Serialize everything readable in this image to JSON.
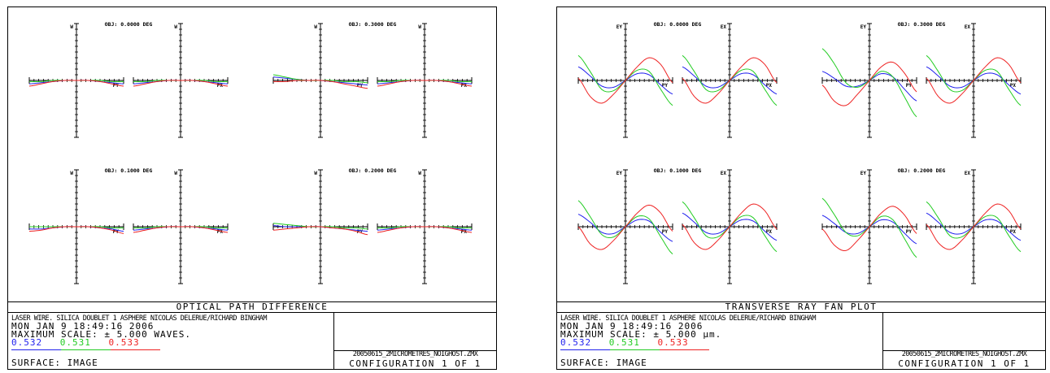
{
  "colors": {
    "wave1": "#2222ee",
    "wave2": "#22cc22",
    "wave3": "#ee2222"
  },
  "panels": [
    {
      "id": "opd",
      "title": "OPTICAL PATH DIFFERENCE",
      "description": "LASER WIRE. SILICA DOUBLET 1 ASPHERE NICOLAS DELERUE/RICHARD BINGHAM",
      "date": "MON JAN  9 18:49:16 2006",
      "scale": "MAXIMUM SCALE: ± 5.000 WAVES.",
      "wavelengths": [
        "0.532",
        "0.531",
        "0.533"
      ],
      "surface": "SURFACE: IMAGE",
      "filename": "20050615_2MICROMETRES_NOIGHOST.ZMX",
      "configuration": "CONFIGURATION  1 OF 1"
    },
    {
      "id": "ray",
      "title": "TRANSVERSE RAY FAN PLOT",
      "description": "LASER WIRE. SILICA DOUBLET 1 ASPHERE NICOLAS DELERUE/RICHARD BINGHAM",
      "date": "MON JAN  9 18:49:16 2006",
      "scale": "MAXIMUM SCALE: ± 5.000 µm.",
      "wavelengths": [
        "0.532",
        "0.531",
        "0.533"
      ],
      "surface": "SURFACE: IMAGE",
      "filename": "20050615_2MICROMETRES_NOIGHOST.ZMX",
      "configuration": "CONFIGURATION  1 OF 1"
    }
  ],
  "chart_data": [
    {
      "type": "line",
      "title": "OPTICAL PATH DIFFERENCE",
      "x": [
        -1,
        -0.75,
        -0.5,
        -0.25,
        0,
        0.25,
        0.5,
        0.75,
        1
      ],
      "ylim": [
        -5,
        5
      ],
      "fields": [
        {
          "obj": "OBJ: 0.0000 DEG",
          "left_axis": "W",
          "right_axis": "W",
          "left_label": "PY",
          "right_label": "PX",
          "py": [
            [
              -0.3,
              -0.2,
              -0.1,
              0,
              0,
              0,
              -0.1,
              -0.2,
              -0.3
            ],
            [
              -0.1,
              -0.1,
              0,
              0,
              0,
              0,
              0,
              -0.1,
              -0.1
            ],
            [
              -0.5,
              -0.3,
              -0.1,
              0,
              0,
              0,
              -0.1,
              -0.3,
              -0.5
            ]
          ],
          "px": [
            [
              -0.3,
              -0.2,
              -0.1,
              0,
              0,
              0,
              -0.1,
              -0.2,
              -0.3
            ],
            [
              -0.1,
              -0.1,
              0,
              0,
              0,
              0,
              0,
              -0.1,
              -0.1
            ],
            [
              -0.5,
              -0.3,
              -0.1,
              0,
              0,
              0,
              -0.1,
              -0.3,
              -0.5
            ]
          ]
        },
        {
          "obj": "OBJ: 0.3000 DEG",
          "left_axis": "W",
          "right_axis": "W",
          "left_label": "PY",
          "right_label": "PX",
          "py": [
            [
              0.3,
              0.2,
              0.1,
              0,
              0,
              -0.1,
              -0.2,
              -0.3,
              -0.4
            ],
            [
              0.5,
              0.3,
              0.1,
              0,
              0,
              0,
              -0.1,
              -0.1,
              -0.2
            ],
            [
              -0.1,
              -0.1,
              0,
              0,
              0,
              -0.1,
              -0.3,
              -0.5,
              -0.7
            ]
          ],
          "px": [
            [
              -0.3,
              -0.2,
              -0.1,
              0,
              0,
              0,
              -0.1,
              -0.2,
              -0.3
            ],
            [
              -0.1,
              -0.1,
              0,
              0,
              0,
              0,
              0,
              -0.1,
              -0.1
            ],
            [
              -0.5,
              -0.3,
              -0.1,
              0,
              0,
              0,
              -0.1,
              -0.3,
              -0.5
            ]
          ]
        },
        {
          "obj": "OBJ: 0.1000 DEG",
          "left_axis": "W",
          "right_axis": "W",
          "left_label": "PY",
          "right_label": "PX",
          "py": [
            [
              -0.2,
              -0.2,
              -0.1,
              0,
              0,
              0,
              -0.1,
              -0.2,
              -0.4
            ],
            [
              0,
              0,
              0,
              0,
              0,
              0,
              0,
              -0.1,
              -0.1
            ],
            [
              -0.4,
              -0.3,
              -0.1,
              0,
              0,
              0,
              -0.1,
              -0.3,
              -0.6
            ]
          ],
          "px": [
            [
              -0.3,
              -0.2,
              -0.1,
              0,
              0,
              0,
              -0.1,
              -0.2,
              -0.3
            ],
            [
              -0.1,
              -0.1,
              0,
              0,
              0,
              0,
              0,
              -0.1,
              -0.1
            ],
            [
              -0.5,
              -0.3,
              -0.1,
              0,
              0,
              0,
              -0.1,
              -0.3,
              -0.5
            ]
          ]
        },
        {
          "obj": "OBJ: 0.2000 DEG",
          "left_axis": "W",
          "right_axis": "W",
          "left_label": "PY",
          "right_label": "PX",
          "py": [
            [
              0.1,
              0,
              0,
              0,
              0,
              -0.1,
              -0.2,
              -0.3,
              -0.4
            ],
            [
              0.3,
              0.2,
              0.1,
              0,
              0,
              0,
              -0.1,
              -0.1,
              -0.2
            ],
            [
              -0.3,
              -0.2,
              -0.1,
              0,
              0,
              -0.1,
              -0.2,
              -0.4,
              -0.7
            ]
          ],
          "px": [
            [
              -0.3,
              -0.2,
              -0.1,
              0,
              0,
              0,
              -0.1,
              -0.2,
              -0.3
            ],
            [
              -0.1,
              -0.1,
              0,
              0,
              0,
              0,
              0,
              -0.1,
              -0.1
            ],
            [
              -0.5,
              -0.3,
              -0.1,
              0,
              0,
              0,
              -0.1,
              -0.3,
              -0.5
            ]
          ]
        }
      ]
    },
    {
      "type": "line",
      "title": "TRANSVERSE RAY FAN PLOT",
      "x": [
        -1,
        -0.75,
        -0.5,
        -0.25,
        0,
        0.25,
        0.5,
        0.75,
        1
      ],
      "ylim": [
        -5,
        5
      ],
      "fields": [
        {
          "obj": "OBJ: 0.0000 DEG",
          "left_axis": "EY",
          "right_axis": "EX",
          "left_label": "PY",
          "right_label": "PX",
          "py": [
            [
              1.2,
              0.4,
              -0.5,
              -0.6,
              0,
              0.6,
              0.5,
              -0.4,
              -1.2
            ],
            [
              2.2,
              0.8,
              -0.8,
              -0.9,
              0,
              0.9,
              0.8,
              -0.8,
              -2.2
            ],
            [
              0.2,
              -1.4,
              -2.0,
              -1.2,
              0,
              1.2,
              2.0,
              1.4,
              -0.2
            ]
          ],
          "px": [
            [
              1.2,
              0.4,
              -0.5,
              -0.6,
              0,
              0.6,
              0.5,
              -0.4,
              -1.2
            ],
            [
              2.2,
              0.8,
              -0.8,
              -0.9,
              0,
              0.9,
              0.8,
              -0.8,
              -2.2
            ],
            [
              0.2,
              -1.4,
              -2.0,
              -1.2,
              0,
              1.2,
              2.0,
              1.4,
              -0.2
            ]
          ]
        },
        {
          "obj": "OBJ: 0.3000 DEG",
          "left_axis": "EY",
          "right_axis": "EX",
          "left_label": "PY",
          "right_label": "PX",
          "py": [
            [
              0.8,
              0.2,
              -0.5,
              -0.5,
              0,
              0.6,
              0.3,
              -0.8,
              -1.8
            ],
            [
              2.8,
              1.5,
              -0.2,
              -0.6,
              0,
              0.8,
              0.3,
              -1.5,
              -3.2
            ],
            [
              -0.4,
              -1.8,
              -2.2,
              -1.2,
              0,
              1.2,
              1.6,
              0.6,
              -1.0
            ]
          ],
          "px": [
            [
              1.2,
              0.4,
              -0.5,
              -0.6,
              0,
              0.6,
              0.5,
              -0.4,
              -1.2
            ],
            [
              2.2,
              0.8,
              -0.8,
              -0.9,
              0,
              0.9,
              0.8,
              -0.8,
              -2.2
            ],
            [
              0.2,
              -1.4,
              -2.0,
              -1.2,
              0,
              1.2,
              2.0,
              1.4,
              -0.2
            ]
          ]
        },
        {
          "obj": "OBJ: 0.1000 DEG",
          "left_axis": "EY",
          "right_axis": "EX",
          "left_label": "PY",
          "right_label": "PX",
          "py": [
            [
              1.1,
              0.4,
              -0.5,
              -0.6,
              0,
              0.6,
              0.5,
              -0.5,
              -1.3
            ],
            [
              2.3,
              0.9,
              -0.7,
              -0.9,
              0,
              0.9,
              0.7,
              -0.9,
              -2.4
            ],
            [
              0.0,
              -1.5,
              -2.0,
              -1.2,
              0,
              1.2,
              1.9,
              1.2,
              -0.4
            ]
          ],
          "px": [
            [
              1.2,
              0.4,
              -0.5,
              -0.6,
              0,
              0.6,
              0.5,
              -0.4,
              -1.2
            ],
            [
              2.2,
              0.8,
              -0.8,
              -0.9,
              0,
              0.9,
              0.8,
              -0.8,
              -2.2
            ],
            [
              0.2,
              -1.4,
              -2.0,
              -1.2,
              0,
              1.2,
              2.0,
              1.4,
              -0.2
            ]
          ]
        },
        {
          "obj": "OBJ: 0.2000 DEG",
          "left_axis": "EY",
          "right_axis": "EX",
          "left_label": "PY",
          "right_label": "PX",
          "py": [
            [
              1.0,
              0.3,
              -0.5,
              -0.6,
              0,
              0.6,
              0.4,
              -0.6,
              -1.5
            ],
            [
              2.5,
              1.1,
              -0.5,
              -0.8,
              0,
              0.9,
              0.6,
              -1.1,
              -2.7
            ],
            [
              -0.2,
              -1.6,
              -2.1,
              -1.2,
              0,
              1.2,
              1.8,
              1.0,
              -0.6
            ]
          ],
          "px": [
            [
              1.2,
              0.4,
              -0.5,
              -0.6,
              0,
              0.6,
              0.5,
              -0.4,
              -1.2
            ],
            [
              2.2,
              0.8,
              -0.8,
              -0.9,
              0,
              0.9,
              0.8,
              -0.8,
              -2.2
            ],
            [
              0.2,
              -1.4,
              -2.0,
              -1.2,
              0,
              1.2,
              2.0,
              1.4,
              -0.2
            ]
          ]
        }
      ]
    }
  ]
}
